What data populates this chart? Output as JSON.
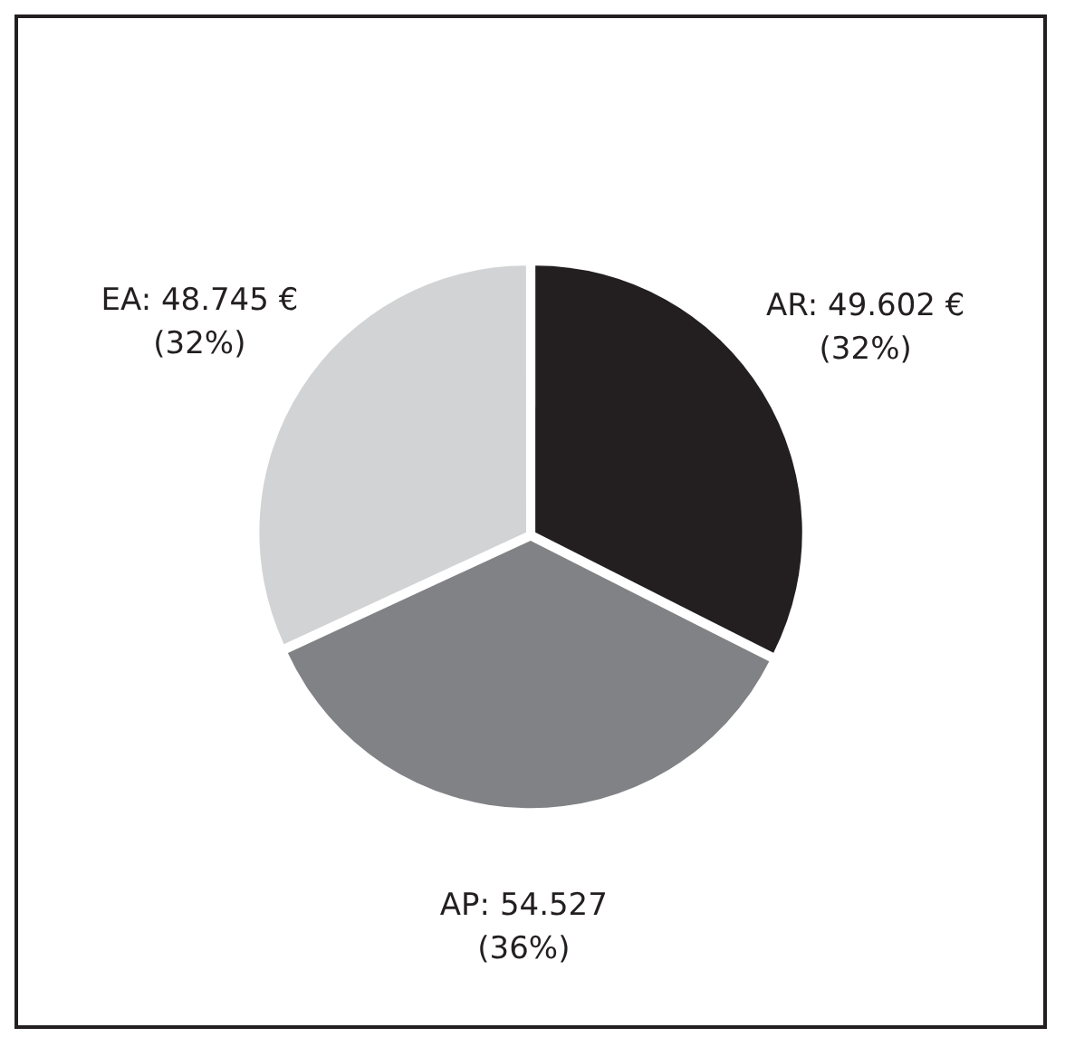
{
  "chart_data": {
    "type": "pie",
    "categories": [
      "AR",
      "AP",
      "EA"
    ],
    "values": [
      49.602,
      54.527,
      48.745
    ],
    "colors": [
      "#231f20",
      "#808285",
      "#d1d3d4"
    ],
    "value_labels": [
      "49.602 €\n(32%)",
      "54.527\n(36%)",
      "48.745 €\n(32%)"
    ],
    "legend": false
  }
}
